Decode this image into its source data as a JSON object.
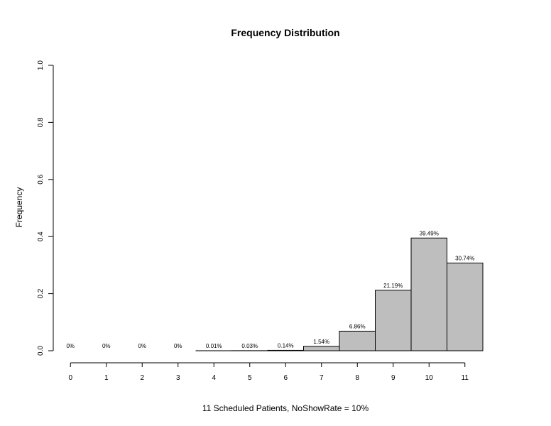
{
  "chart_data": {
    "type": "bar",
    "title": "Frequency Distribution",
    "xlabel": "11 Scheduled Patients,  NoShowRate = 10%",
    "ylabel": "Frequency",
    "categories": [
      "0",
      "1",
      "2",
      "3",
      "4",
      "5",
      "6",
      "7",
      "8",
      "9",
      "10",
      "11"
    ],
    "values": [
      0,
      0,
      0,
      0,
      0.0001,
      0.0003,
      0.0014,
      0.0154,
      0.0686,
      0.2119,
      0.3949,
      0.3074
    ],
    "data_labels": [
      "0%",
      "0%",
      "0%",
      "0%",
      "0.01%",
      "0.03%",
      "0.14%",
      "1.54%",
      "6.86%",
      "21.19%",
      "39.49%",
      "30.74%"
    ],
    "ylim": [
      0,
      1
    ],
    "yticks": [
      "0.0",
      "0.2",
      "0.4",
      "0.6",
      "0.8",
      "1.0"
    ],
    "bar_color": "#bebebe",
    "grid": false,
    "legend": "none"
  }
}
